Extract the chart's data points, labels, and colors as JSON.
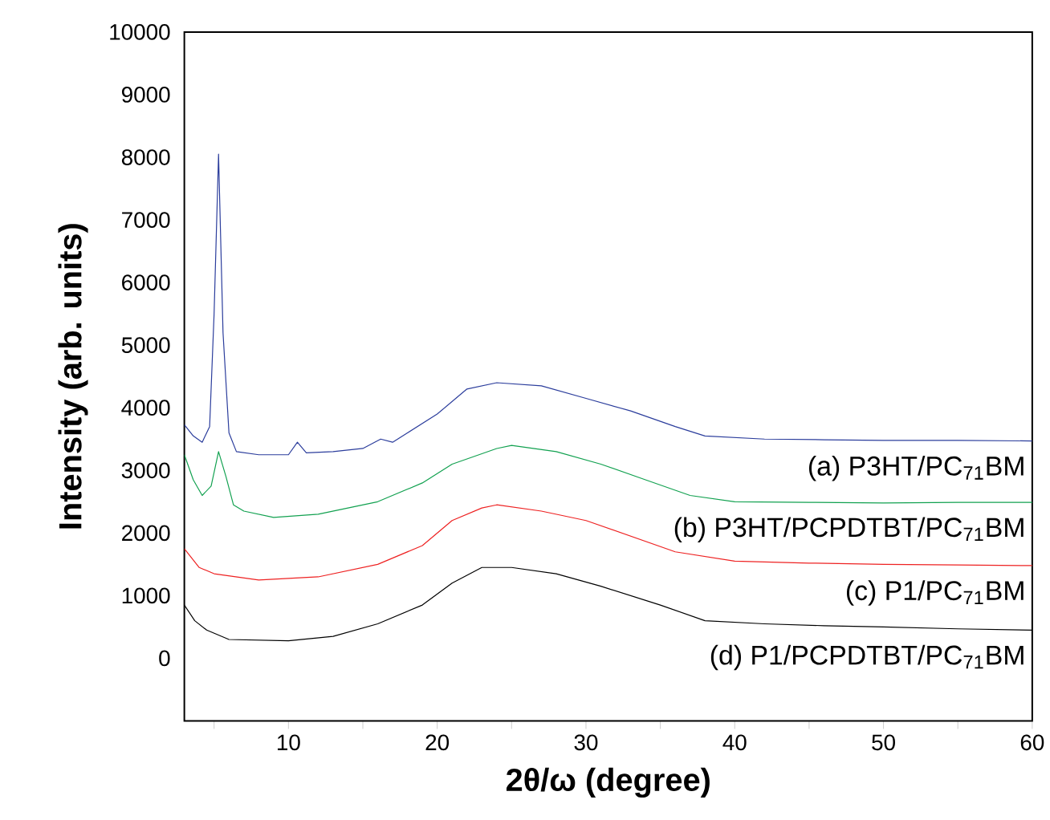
{
  "chart_data": {
    "type": "line",
    "xlabel": "2θ/ω (degree)",
    "ylabel": "Intensity (arb. units)",
    "xlim": [
      3,
      60
    ],
    "ylim": [
      -1000,
      10000
    ],
    "xticks": [
      {
        "value": 5,
        "label": null
      },
      10,
      {
        "value": 15,
        "label": null
      },
      20,
      {
        "value": 25,
        "label": null
      },
      30,
      {
        "value": 35,
        "label": null
      },
      40,
      {
        "value": 45,
        "label": null
      },
      50,
      {
        "value": 55,
        "label": null
      },
      60
    ],
    "yticks": [
      0,
      1000,
      2000,
      3000,
      4000,
      5000,
      6000,
      7000,
      8000,
      9000,
      10000
    ],
    "grid": false,
    "legend": false,
    "marker": "none",
    "line_style": "solid",
    "series": [
      {
        "name": "(a) P3HT/PC$_{71}$BM",
        "color": "#2b3d9c",
        "x": [
          3,
          3.6,
          4.2,
          4.7,
          5.0,
          5.3,
          5.6,
          6.0,
          6.5,
          8,
          10,
          10.6,
          11.2,
          13,
          15,
          16.2,
          17,
          18,
          20,
          22,
          24,
          27,
          30,
          33,
          36,
          38,
          42,
          46,
          50,
          55,
          60
        ],
        "values": [
          3730,
          3550,
          3450,
          3700,
          5500,
          8050,
          5200,
          3600,
          3300,
          3250,
          3250,
          3450,
          3280,
          3300,
          3350,
          3500,
          3450,
          3600,
          3900,
          4300,
          4400,
          4350,
          4150,
          3950,
          3700,
          3550,
          3500,
          3490,
          3480,
          3480,
          3470
        ]
      },
      {
        "name": "(b) P3HT/PCPDTBT/PC$_{71}$BM",
        "color": "#12a150",
        "x": [
          3,
          3.6,
          4.2,
          4.8,
          5.3,
          5.8,
          6.3,
          7,
          9,
          12,
          16,
          19,
          21,
          24,
          25,
          28,
          31,
          34,
          37,
          40,
          45,
          50,
          55,
          60
        ],
        "values": [
          3250,
          2850,
          2600,
          2750,
          3300,
          2900,
          2450,
          2350,
          2250,
          2300,
          2500,
          2800,
          3100,
          3350,
          3400,
          3300,
          3100,
          2850,
          2600,
          2500,
          2490,
          2480,
          2490,
          2490
        ]
      },
      {
        "name": "(c) P1/PC$_{71}$BM",
        "color": "#ee2222",
        "x": [
          3,
          4,
          5,
          8,
          12,
          16,
          19,
          21,
          23,
          24,
          27,
          30,
          33,
          36,
          40,
          45,
          50,
          55,
          60
        ],
        "values": [
          1750,
          1450,
          1350,
          1250,
          1300,
          1500,
          1800,
          2200,
          2400,
          2450,
          2350,
          2200,
          1950,
          1700,
          1550,
          1520,
          1500,
          1490,
          1480
        ]
      },
      {
        "name": "(d) P1/PCPDTBT/PC$_{71}$BM",
        "color": "#000000",
        "x": [
          3,
          3.7,
          4.5,
          6,
          10,
          13,
          16,
          19,
          21,
          23,
          25,
          28,
          31,
          35,
          38,
          42,
          46,
          50,
          55,
          60
        ],
        "values": [
          850,
          600,
          450,
          300,
          280,
          350,
          550,
          850,
          1200,
          1450,
          1450,
          1350,
          1150,
          850,
          600,
          550,
          520,
          500,
          470,
          450
        ]
      }
    ]
  }
}
